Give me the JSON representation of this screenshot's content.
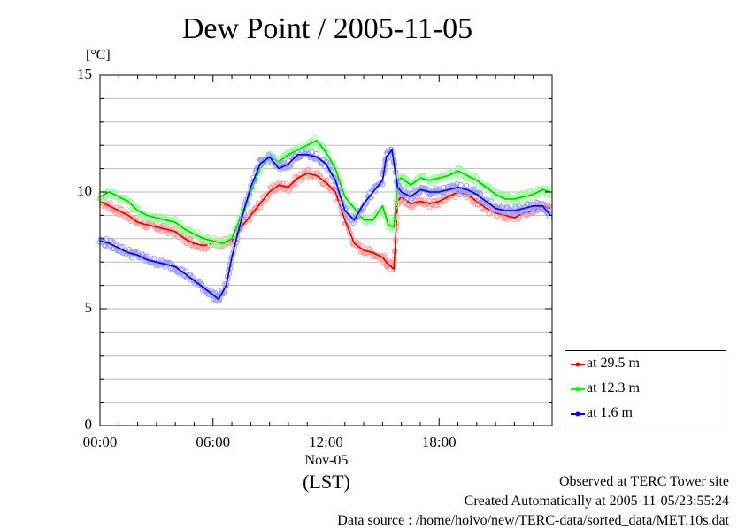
{
  "chart_data": {
    "type": "line",
    "title": "Dew Point / 2005-11-05",
    "ylabel": "[°C]",
    "xlabel": "(LST)",
    "ylim": [
      0,
      15
    ],
    "xlim": [
      0,
      24
    ],
    "x_unit": "hour",
    "yticks": [
      "0",
      "5",
      "10",
      "15"
    ],
    "xticks": [
      {
        "value": 0,
        "label": "00:00"
      },
      {
        "value": 6,
        "label": "06:00"
      },
      {
        "value": 12,
        "label": "12:00"
      },
      {
        "value": 18,
        "label": "18:00"
      }
    ],
    "date_label": "Nov-05",
    "grid": true,
    "legend_position": "right, below plot",
    "series": [
      {
        "name": "at 29.5 m",
        "color": "#ff0000",
        "points": [
          [
            0,
            9.6
          ],
          [
            0.5,
            9.4
          ],
          [
            1,
            9.2
          ],
          [
            1.5,
            9.0
          ],
          [
            2,
            8.7
          ],
          [
            2.5,
            8.6
          ],
          [
            3,
            8.5
          ],
          [
            3.5,
            8.4
          ],
          [
            4,
            8.3
          ],
          [
            4.5,
            8.0
          ],
          [
            5,
            7.8
          ],
          [
            5.5,
            7.7
          ],
          [
            6,
            7.8
          ],
          [
            6.5,
            7.8
          ],
          [
            7,
            7.9
          ],
          [
            7.5,
            8.5
          ],
          [
            8,
            9.0
          ],
          [
            8.5,
            9.5
          ],
          [
            9,
            10.0
          ],
          [
            9.5,
            10.3
          ],
          [
            10,
            10.2
          ],
          [
            10.5,
            10.6
          ],
          [
            11,
            10.8
          ],
          [
            11.5,
            10.7
          ],
          [
            12,
            10.4
          ],
          [
            12.5,
            10.0
          ],
          [
            13,
            8.8
          ],
          [
            13.5,
            7.8
          ],
          [
            14,
            7.5
          ],
          [
            14.5,
            7.4
          ],
          [
            15,
            7.2
          ],
          [
            15.3,
            6.9
          ],
          [
            15.6,
            6.7
          ],
          [
            15.8,
            9.6
          ],
          [
            16,
            9.8
          ],
          [
            16.5,
            9.5
          ],
          [
            17,
            9.6
          ],
          [
            17.5,
            9.5
          ],
          [
            18,
            9.6
          ],
          [
            18.5,
            9.8
          ],
          [
            19,
            10.0
          ],
          [
            19.5,
            9.9
          ],
          [
            20,
            9.6
          ],
          [
            20.5,
            9.3
          ],
          [
            21,
            9.1
          ],
          [
            21.5,
            9.0
          ],
          [
            22,
            8.9
          ],
          [
            22.5,
            9.1
          ],
          [
            23,
            9.2
          ],
          [
            23.5,
            9.4
          ],
          [
            23.9,
            9.3
          ]
        ]
      },
      {
        "name": "at 12.3 m",
        "color": "#00ff00",
        "points": [
          [
            0,
            9.8
          ],
          [
            0.5,
            10.0
          ],
          [
            1,
            9.8
          ],
          [
            1.5,
            9.6
          ],
          [
            2,
            9.2
          ],
          [
            2.5,
            9.0
          ],
          [
            3,
            8.9
          ],
          [
            3.5,
            8.8
          ],
          [
            4,
            8.7
          ],
          [
            4.5,
            8.4
          ],
          [
            5,
            8.2
          ],
          [
            5.5,
            8.0
          ],
          [
            6,
            7.9
          ],
          [
            6.5,
            7.8
          ],
          [
            7,
            8.0
          ],
          [
            7.5,
            9.0
          ],
          [
            8,
            10.0
          ],
          [
            8.5,
            11.0
          ],
          [
            9,
            11.5
          ],
          [
            9.5,
            11.3
          ],
          [
            10,
            11.6
          ],
          [
            10.5,
            11.8
          ],
          [
            11,
            12.0
          ],
          [
            11.5,
            12.2
          ],
          [
            12,
            11.7
          ],
          [
            12.5,
            11.0
          ],
          [
            13,
            9.8
          ],
          [
            13.5,
            9.3
          ],
          [
            14,
            8.8
          ],
          [
            14.5,
            8.8
          ],
          [
            15,
            9.4
          ],
          [
            15.3,
            8.6
          ],
          [
            15.6,
            8.5
          ],
          [
            15.8,
            10.5
          ],
          [
            16,
            10.6
          ],
          [
            16.5,
            10.3
          ],
          [
            17,
            10.6
          ],
          [
            17.5,
            10.5
          ],
          [
            18,
            10.6
          ],
          [
            18.5,
            10.7
          ],
          [
            19,
            10.9
          ],
          [
            19.5,
            10.7
          ],
          [
            20,
            10.5
          ],
          [
            20.5,
            10.2
          ],
          [
            21,
            9.9
          ],
          [
            21.5,
            9.7
          ],
          [
            22,
            9.7
          ],
          [
            22.5,
            9.8
          ],
          [
            23,
            9.9
          ],
          [
            23.5,
            10.1
          ],
          [
            23.9,
            10.0
          ]
        ]
      },
      {
        "name": "at 1.6 m",
        "color": "#0000ff",
        "points": [
          [
            0,
            7.9
          ],
          [
            0.5,
            7.8
          ],
          [
            1,
            7.6
          ],
          [
            1.5,
            7.4
          ],
          [
            2,
            7.3
          ],
          [
            2.5,
            7.1
          ],
          [
            3,
            7.0
          ],
          [
            3.5,
            6.9
          ],
          [
            4,
            6.8
          ],
          [
            4.5,
            6.5
          ],
          [
            5,
            6.2
          ],
          [
            5.5,
            5.9
          ],
          [
            6,
            5.6
          ],
          [
            6.3,
            5.4
          ],
          [
            6.7,
            6.0
          ],
          [
            7,
            7.2
          ],
          [
            7.5,
            8.8
          ],
          [
            8,
            10.2
          ],
          [
            8.5,
            11.2
          ],
          [
            9,
            11.5
          ],
          [
            9.5,
            11.0
          ],
          [
            10,
            11.2
          ],
          [
            10.5,
            11.6
          ],
          [
            11,
            11.6
          ],
          [
            11.5,
            11.5
          ],
          [
            12,
            11.2
          ],
          [
            12.5,
            10.5
          ],
          [
            13,
            9.2
          ],
          [
            13.5,
            8.8
          ],
          [
            14,
            9.5
          ],
          [
            14.5,
            10.0
          ],
          [
            15,
            10.5
          ],
          [
            15.2,
            11.5
          ],
          [
            15.5,
            11.8
          ],
          [
            15.8,
            10.2
          ],
          [
            16,
            10.0
          ],
          [
            16.5,
            9.8
          ],
          [
            17,
            10.1
          ],
          [
            17.5,
            10.0
          ],
          [
            18,
            10.0
          ],
          [
            18.5,
            10.1
          ],
          [
            19,
            10.2
          ],
          [
            19.5,
            10.1
          ],
          [
            20,
            9.9
          ],
          [
            20.5,
            9.6
          ],
          [
            21,
            9.3
          ],
          [
            21.5,
            9.2
          ],
          [
            22,
            9.2
          ],
          [
            22.5,
            9.3
          ],
          [
            23,
            9.4
          ],
          [
            23.5,
            9.4
          ],
          [
            23.9,
            9.0
          ]
        ]
      }
    ]
  },
  "footer": {
    "line1": "Observed at TERC Tower site",
    "line2": "Created Automatically at 2005-11-05/23:55:24",
    "line3": "Data source : /home/hoivo/new/TERC-data/sorted_data/MET.10s.dat"
  }
}
